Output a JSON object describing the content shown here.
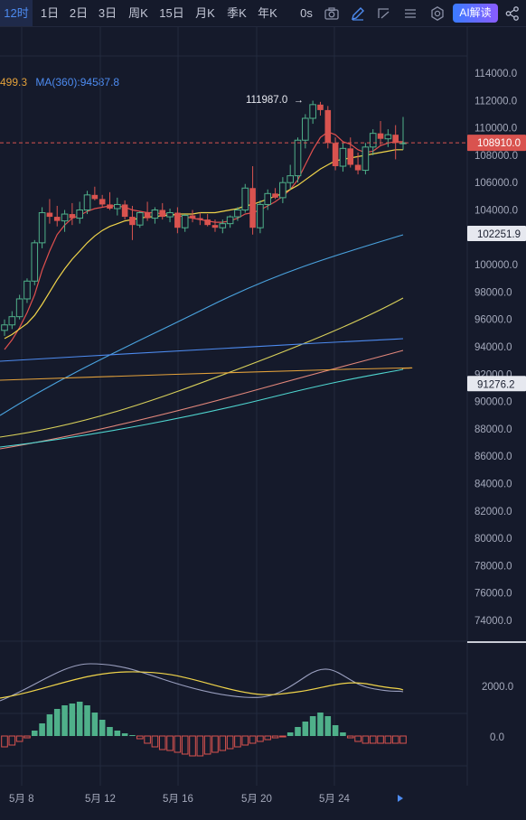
{
  "toolbar": {
    "timeframes": [
      "12时",
      "1日",
      "2日",
      "3日",
      "周K",
      "15日",
      "月K",
      "季K",
      "年K"
    ],
    "active": "12时",
    "countdown": "0s",
    "ai_label": "AI解读"
  },
  "legend": {
    "ma_partial": "499.3",
    "ma360": "MA(360):94587.8",
    "colors": {
      "ma_partial": "#e3a13b",
      "ma360": "#4d8bf0"
    }
  },
  "price_axis": {
    "ticks": [
      114000,
      112000,
      110000,
      108000,
      106000,
      104000,
      100000,
      98000,
      96000,
      94000,
      92000,
      90000,
      88000,
      86000,
      84000,
      82000,
      80000,
      78000,
      76000,
      74000
    ],
    "labels": [
      "114000.0",
      "112000.0",
      "110000.0",
      "108000.0",
      "106000.0",
      "104000.0",
      "100000.0",
      "98000.0",
      "96000.0",
      "94000.0",
      "92000.0",
      "90000.0",
      "88000.0",
      "86000.0",
      "84000.0",
      "82000.0",
      "80000.0",
      "78000.0",
      "76000.0",
      "74000.0"
    ],
    "current_price": "108910.0",
    "current_value": 108910,
    "marker_a": "102251.9",
    "marker_a_value": 102251.9,
    "marker_b": "91276.2",
    "marker_b_value": 91276.2,
    "high_annotation": "111987.0",
    "high_value": 111987
  },
  "indicator_axis": {
    "labels": [
      "2000.0",
      "0.0"
    ]
  },
  "time_axis": {
    "labels": [
      "5月 8",
      "5月 12",
      "5月 16",
      "5月 20",
      "5月 24"
    ]
  },
  "colors": {
    "up": "#4fb08a",
    "down": "#d9534f",
    "ma_short": "#e0504e",
    "ma_mid": "#f0d44a",
    "ma_long1": "#4aa3df",
    "ma_long2": "#d8d05a",
    "ma_long3": "#e2877b",
    "ma_long4": "#4fd6d0",
    "ma360": "#4d8bf0",
    "ma_orange": "#e3a13b"
  },
  "chart_data": {
    "type": "candlestick",
    "candles": [
      [
        95200,
        96000,
        94800,
        95600
      ],
      [
        95600,
        96600,
        95300,
        96200
      ],
      [
        96200,
        97800,
        96000,
        97500
      ],
      [
        97500,
        99000,
        97200,
        98800
      ],
      [
        98800,
        101800,
        98500,
        101600
      ],
      [
        101600,
        104200,
        101200,
        103800
      ],
      [
        103800,
        104800,
        103000,
        103500
      ],
      [
        103500,
        104300,
        102800,
        103200
      ],
      [
        103200,
        104000,
        102400,
        103700
      ],
      [
        103700,
        104500,
        102900,
        103400
      ],
      [
        103400,
        104600,
        103000,
        104000
      ],
      [
        104000,
        105400,
        103700,
        105100
      ],
      [
        105100,
        105700,
        104700,
        104800
      ],
      [
        104800,
        105100,
        104200,
        104400
      ],
      [
        104400,
        105300,
        104000,
        104100
      ],
      [
        104100,
        104900,
        103600,
        104400
      ],
      [
        104400,
        104700,
        103300,
        103500
      ],
      [
        103500,
        104300,
        101800,
        102900
      ],
      [
        102900,
        103900,
        102700,
        103800
      ],
      [
        103800,
        104600,
        103200,
        103400
      ],
      [
        103400,
        104200,
        103000,
        104000
      ],
      [
        104000,
        104500,
        103300,
        103500
      ],
      [
        103500,
        104100,
        103100,
        103800
      ],
      [
        103800,
        104200,
        102300,
        102700
      ],
      [
        102700,
        103700,
        102400,
        103600
      ],
      [
        103600,
        104000,
        103100,
        103400
      ],
      [
        103400,
        103800,
        102900,
        103300
      ],
      [
        103300,
        103700,
        102800,
        102900
      ],
      [
        102900,
        103300,
        102400,
        102700
      ],
      [
        102700,
        103300,
        102300,
        103000
      ],
      [
        103000,
        103600,
        102700,
        103500
      ],
      [
        103500,
        104200,
        103200,
        104000
      ],
      [
        104000,
        105900,
        103800,
        105600
      ],
      [
        105600,
        107200,
        102200,
        102700
      ],
      [
        102700,
        104700,
        102300,
        104400
      ],
      [
        104400,
        105500,
        104000,
        105200
      ],
      [
        105200,
        105600,
        104800,
        104900
      ],
      [
        104900,
        106400,
        104500,
        106000
      ],
      [
        106000,
        107300,
        105500,
        106500
      ],
      [
        106500,
        109300,
        106000,
        109100
      ],
      [
        109100,
        111000,
        108500,
        110700
      ],
      [
        110700,
        111987,
        110300,
        111700
      ],
      [
        111700,
        111900,
        110900,
        111300
      ],
      [
        111300,
        111600,
        108500,
        108900
      ],
      [
        108900,
        109300,
        106900,
        107200
      ],
      [
        107200,
        108900,
        106800,
        108500
      ],
      [
        108500,
        109300,
        107100,
        107300
      ],
      [
        107300,
        108200,
        106600,
        106900
      ],
      [
        106900,
        108900,
        106600,
        108600
      ],
      [
        108600,
        109900,
        108000,
        109600
      ],
      [
        109600,
        110500,
        108700,
        109200
      ],
      [
        109200,
        109900,
        108600,
        109500
      ],
      [
        109500,
        110200,
        107700,
        108900
      ],
      [
        108900,
        110800,
        108400,
        108910
      ]
    ],
    "ma_short": [
      93800,
      94500,
      95400,
      96500,
      97800,
      99600,
      101000,
      102200,
      102900,
      103400,
      103600,
      103900,
      104100,
      104200,
      104300,
      104300,
      104200,
      104000,
      103900,
      103800,
      103800,
      103700,
      103700,
      103600,
      103500,
      103400,
      103300,
      103200,
      103100,
      103100,
      103200,
      103400,
      103700,
      103800,
      104000,
      104300,
      104600,
      105000,
      105500,
      106200,
      107300,
      108400,
      109300,
      109700,
      109500,
      109000,
      108800,
      108400,
      108200,
      108300,
      108700,
      108900,
      109000,
      109000
    ],
    "ma_mid": [
      94600,
      94900,
      95300,
      95700,
      96300,
      97100,
      98000,
      98900,
      99700,
      100400,
      101000,
      101600,
      102100,
      102500,
      102800,
      103000,
      103200,
      103300,
      103400,
      103500,
      103500,
      103600,
      103600,
      103700,
      103700,
      103700,
      103800,
      103800,
      103800,
      103900,
      104000,
      104100,
      104300,
      104400,
      104600,
      104800,
      105000,
      105200,
      105500,
      105800,
      106200,
      106600,
      107000,
      107300,
      107600,
      107700,
      107800,
      107900,
      108000,
      108100,
      108200,
      108300,
      108400,
      108400
    ]
  }
}
